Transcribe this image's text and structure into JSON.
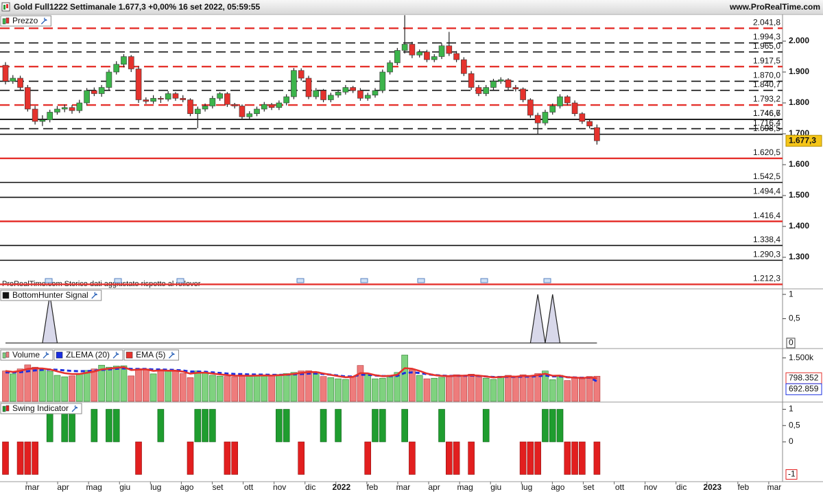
{
  "chart_data": [
    {
      "type": "candlestick",
      "title": "Gold Full1222 Settimanale 1.677,3 +0,00% 16 set 2022, 05:59:55",
      "site": "www.ProRealTime.com",
      "label": "Prezzo",
      "watermark": "ProRealTime.com Storico dati aggiustato rispetto al rollover",
      "up_color": "#3cb44b",
      "down_color": "#e5322d",
      "ohlc": [
        [
          1922,
          1932,
          1860,
          1870
        ],
        [
          1870,
          1890,
          1862,
          1880
        ],
        [
          1880,
          1888,
          1842,
          1850
        ],
        [
          1850,
          1858,
          1772,
          1780
        ],
        [
          1780,
          1790,
          1730,
          1740
        ],
        [
          1740,
          1760,
          1725,
          1745
        ],
        [
          1745,
          1778,
          1737,
          1770
        ],
        [
          1770,
          1790,
          1762,
          1780
        ],
        [
          1780,
          1795,
          1770,
          1785
        ],
        [
          1785,
          1793,
          1765,
          1775
        ],
        [
          1775,
          1810,
          1767,
          1800
        ],
        [
          1800,
          1848,
          1792,
          1840
        ],
        [
          1840,
          1850,
          1822,
          1830
        ],
        [
          1830,
          1858,
          1820,
          1850
        ],
        [
          1850,
          1908,
          1842,
          1900
        ],
        [
          1900,
          1935,
          1892,
          1925
        ],
        [
          1925,
          1958,
          1915,
          1950
        ],
        [
          1950,
          1955,
          1900,
          1910
        ],
        [
          1910,
          1918,
          1800,
          1810
        ],
        [
          1810,
          1818,
          1797,
          1805
        ],
        [
          1805,
          1825,
          1797,
          1815
        ],
        [
          1815,
          1822,
          1800,
          1812
        ],
        [
          1812,
          1838,
          1805,
          1830
        ],
        [
          1830,
          1835,
          1807,
          1815
        ],
        [
          1815,
          1825,
          1802,
          1810
        ],
        [
          1810,
          1815,
          1757,
          1765
        ],
        [
          1765,
          1788,
          1718,
          1780
        ],
        [
          1780,
          1798,
          1772,
          1790
        ],
        [
          1790,
          1823,
          1782,
          1815
        ],
        [
          1815,
          1835,
          1807,
          1830
        ],
        [
          1830,
          1835,
          1787,
          1795
        ],
        [
          1795,
          1800,
          1782,
          1790
        ],
        [
          1790,
          1795,
          1747,
          1755
        ],
        [
          1755,
          1773,
          1748,
          1765
        ],
        [
          1765,
          1788,
          1757,
          1780
        ],
        [
          1780,
          1803,
          1772,
          1795
        ],
        [
          1795,
          1800,
          1777,
          1785
        ],
        [
          1785,
          1808,
          1777,
          1800
        ],
        [
          1800,
          1828,
          1792,
          1820
        ],
        [
          1820,
          1913,
          1812,
          1905
        ],
        [
          1905,
          1912,
          1872,
          1880
        ],
        [
          1880,
          1888,
          1812,
          1820
        ],
        [
          1820,
          1848,
          1812,
          1840
        ],
        [
          1840,
          1845,
          1802,
          1810
        ],
        [
          1810,
          1833,
          1802,
          1825
        ],
        [
          1825,
          1843,
          1817,
          1835
        ],
        [
          1835,
          1858,
          1827,
          1850
        ],
        [
          1850,
          1855,
          1832,
          1840
        ],
        [
          1840,
          1848,
          1807,
          1815
        ],
        [
          1815,
          1833,
          1807,
          1825
        ],
        [
          1825,
          1848,
          1817,
          1840
        ],
        [
          1840,
          1908,
          1832,
          1900
        ],
        [
          1900,
          1938,
          1892,
          1930
        ],
        [
          1930,
          1978,
          1922,
          1970
        ],
        [
          1970,
          2084,
          1960,
          1990
        ],
        [
          1990,
          1998,
          1945,
          1955
        ],
        [
          1955,
          1973,
          1947,
          1965
        ],
        [
          1965,
          1972,
          1932,
          1940
        ],
        [
          1940,
          1958,
          1932,
          1950
        ],
        [
          1950,
          1993,
          1942,
          1985
        ],
        [
          1985,
          2030,
          1952,
          1960
        ],
        [
          1960,
          1968,
          1932,
          1940
        ],
        [
          1940,
          1948,
          1887,
          1895
        ],
        [
          1895,
          1903,
          1842,
          1850
        ],
        [
          1850,
          1858,
          1822,
          1830
        ],
        [
          1830,
          1858,
          1822,
          1850
        ],
        [
          1850,
          1878,
          1842,
          1870
        ],
        [
          1870,
          1883,
          1862,
          1875
        ],
        [
          1875,
          1880,
          1842,
          1850
        ],
        [
          1850,
          1858,
          1837,
          1845
        ],
        [
          1845,
          1850,
          1802,
          1810
        ],
        [
          1810,
          1815,
          1752,
          1760
        ],
        [
          1760,
          1768,
          1700,
          1735
        ],
        [
          1735,
          1778,
          1727,
          1770
        ],
        [
          1770,
          1798,
          1762,
          1790
        ],
        [
          1790,
          1828,
          1782,
          1820
        ],
        [
          1820,
          1825,
          1792,
          1800
        ],
        [
          1800,
          1808,
          1757,
          1765
        ],
        [
          1765,
          1770,
          1732,
          1740
        ],
        [
          1740,
          1748,
          1717,
          1725
        ],
        [
          1720,
          1730,
          1665,
          1677.3
        ]
      ],
      "last_label": "1.677,3",
      "ylim": [
        1200,
        2084.4
      ],
      "yticks": [
        {
          "value": 2000,
          "label": "2.000"
        },
        {
          "value": 1900,
          "label": "1.900"
        },
        {
          "value": 1800,
          "label": "1.800"
        },
        {
          "value": 1700,
          "label": "1.700"
        },
        {
          "value": 1600,
          "label": "1.600"
        },
        {
          "value": 1500,
          "label": "1.500"
        },
        {
          "value": 1400,
          "label": "1.400"
        },
        {
          "value": 1300,
          "label": "1.300"
        }
      ],
      "levels": [
        {
          "value": 2041.8,
          "label": "2.041,8",
          "color": "#e5322d",
          "dashed": true
        },
        {
          "value": 1994.3,
          "label": "1.994,3",
          "color": "#111111",
          "dashed": true
        },
        {
          "value": 1965.0,
          "label": "1.965,0",
          "color": "#111111",
          "dashed": true
        },
        {
          "value": 1917.5,
          "label": "1.917,5",
          "color": "#e5322d",
          "dashed": true
        },
        {
          "value": 1870.0,
          "label": "1.870,0",
          "color": "#111111",
          "dashed": true
        },
        {
          "value": 1840.7,
          "label": "1.840,7",
          "color": "#111111",
          "dashed": true
        },
        {
          "value": 1793.2,
          "label": "1.793,2",
          "color": "#e5322d",
          "dashed": true
        },
        {
          "value": 1746.6,
          "label": "1.746,6",
          "color": "#111111",
          "dashed": false
        },
        {
          "value": 1746.7,
          "label": "1.746,7",
          "color": "#111111",
          "dashed": false
        },
        {
          "value": 1716.4,
          "label": "1.716,4",
          "color": "#111111",
          "dashed": true
        },
        {
          "value": 1698.5,
          "label": "1.698,5",
          "color": "#111111",
          "dashed": false
        },
        {
          "value": 1620.5,
          "label": "1.620,5",
          "color": "#e5322d",
          "dashed": false
        },
        {
          "value": 1542.5,
          "label": "1.542,5",
          "color": "#111111",
          "dashed": false
        },
        {
          "value": 1494.4,
          "label": "1.494,4",
          "color": "#111111",
          "dashed": false
        },
        {
          "value": 1416.4,
          "label": "1.416,4",
          "color": "#e5322d",
          "dashed": false
        },
        {
          "value": 1338.4,
          "label": "1.338,4",
          "color": "#111111",
          "dashed": false
        },
        {
          "value": 1290.3,
          "label": "1.290,3",
          "color": "#111111",
          "dashed": false
        },
        {
          "value": 1212.3,
          "label": "1.212,3",
          "color": "#e5322d",
          "dashed": false
        }
      ]
    },
    {
      "type": "area",
      "label": "BottomHunter Signal",
      "color": "#d8d8ea",
      "values": [
        0,
        0,
        0,
        0,
        0,
        0,
        1,
        0,
        0,
        0,
        0,
        0,
        0,
        0,
        0,
        0,
        0,
        0,
        0,
        0,
        0,
        0,
        0,
        0,
        0,
        0,
        0,
        0,
        0,
        0,
        0,
        0,
        0,
        0,
        0,
        0,
        0,
        0,
        0,
        0,
        0,
        0,
        0,
        0,
        0,
        0,
        0,
        0,
        0,
        0,
        0,
        0,
        0,
        0,
        0,
        0,
        0,
        0,
        0,
        0,
        0,
        0,
        0,
        0,
        0,
        0,
        0,
        0,
        0,
        0,
        0,
        0,
        1,
        0,
        1,
        0,
        0,
        0,
        0,
        0,
        0
      ],
      "ylim": [
        -0.1,
        1.1
      ],
      "yticks": [
        1,
        {
          "value": 0.5,
          "label": "0,5"
        }
      ]
    },
    {
      "type": "bar",
      "ylim": [
        0,
        1800
      ],
      "yticks": [
        {
          "value": 1500,
          "label": "1.500k"
        }
      ],
      "series": [
        {
          "name": "Volume",
          "up_color": "#7fd27f",
          "down_color": "#ee7c7c",
          "values": [
            1050,
            950,
            1120,
            1260,
            1180,
            1130,
            1040,
            900,
            850,
            880,
            950,
            1070,
            1120,
            1250,
            1180,
            1220,
            1230,
            880,
            1130,
            1120,
            950,
            1100,
            1040,
            1060,
            960,
            820,
            1050,
            1000,
            900,
            870,
            860,
            840,
            900,
            870,
            900,
            910,
            880,
            930,
            960,
            1000,
            1050,
            1060,
            1020,
            860,
            820,
            780,
            760,
            870,
            1240,
            950,
            780,
            800,
            900,
            1000,
            1600,
            1090,
            900,
            780,
            800,
            830,
            850,
            920,
            890,
            940,
            860,
            800,
            760,
            870,
            900,
            840,
            920,
            880,
            960,
            1050,
            750,
            900,
            720,
            800,
            780,
            860,
            870
          ]
        },
        {
          "name": "ZLEMA (20)",
          "color": "#1a2ee0",
          "values": [
            1000,
            1000,
            1010,
            1040,
            1070,
            1090,
            1100,
            1090,
            1070,
            1050,
            1040,
            1045,
            1060,
            1085,
            1105,
            1125,
            1140,
            1120,
            1120,
            1120,
            1100,
            1100,
            1090,
            1085,
            1065,
            1030,
            1030,
            1020,
            1000,
            980,
            960,
            945,
            940,
            930,
            925,
            922,
            915,
            915,
            920,
            930,
            945,
            960,
            965,
            945,
            920,
            890,
            860,
            860,
            920,
            920,
            895,
            875,
            870,
            880,
            980,
            1000,
            980,
            940,
            910,
            890,
            880,
            885,
            882,
            890,
            880,
            860,
            840,
            842,
            850,
            845,
            855,
            855,
            870,
            895,
            865,
            865,
            835,
            825,
            815,
            820,
            692.859
          ]
        },
        {
          "name": "EMA (5)",
          "color": "#e5322d",
          "values": [
            1050,
            1017,
            1051,
            1121,
            1141,
            1137,
            1105,
            1036,
            974,
            943,
            945,
            987,
            1031,
            1104,
            1129,
            1159,
            1183,
            1082,
            1098,
            1105,
            1053,
            1069,
            1059,
            1059,
            1026,
            957,
            988,
            992,
            961,
            931,
            907,
            885,
            890,
            883,
            889,
            896,
            891,
            904,
            923,
            949,
            983,
            1009,
            1013,
            962,
            915,
            870,
            833,
            845,
            977,
            968,
            905,
            870,
            880,
            920,
            1147,
            1128,
            1052,
            961,
            907,
            881,
            871,
            887,
            888,
            905,
            890,
            860,
            827,
            841,
            861,
            854,
            876,
            877,
            905,
            953,
            885,
            890,
            833,
            822,
            808,
            825,
            798.352
          ]
        }
      ]
    },
    {
      "type": "bar",
      "label": "Swing Indicator",
      "up_color": "#1f9d2f",
      "down_color": "#e21f1f",
      "values": [
        -1,
        0,
        -1,
        -1,
        -1,
        0,
        1,
        0,
        1,
        1,
        0,
        0,
        1,
        0,
        1,
        1,
        0,
        0,
        -1,
        0,
        0,
        1,
        0,
        0,
        0,
        -1,
        1,
        1,
        1,
        0,
        -1,
        -1,
        0,
        0,
        0,
        0,
        0,
        1,
        1,
        0,
        -1,
        0,
        0,
        1,
        0,
        1,
        0,
        0,
        0,
        -1,
        1,
        1,
        0,
        0,
        1,
        -1,
        0,
        0,
        0,
        1,
        -1,
        -1,
        0,
        -1,
        0,
        1,
        0,
        0,
        0,
        0,
        -1,
        -1,
        -1,
        1,
        1,
        1,
        -1,
        -1,
        -1,
        0,
        -1
      ],
      "ylim": [
        -1.2,
        1.2
      ],
      "yticks": [
        1,
        {
          "value": 0.5,
          "label": "0,5"
        },
        0
      ],
      "months": [
        "mar",
        "apr",
        "mag",
        "giu",
        "lug",
        "ago",
        "set",
        "ott",
        "nov",
        "dic",
        "2022",
        "feb",
        "mar",
        "apr",
        "mag",
        "giu",
        "lug",
        "ago",
        "set",
        "ott",
        "nov",
        "dic",
        "2023",
        "feb",
        "mar"
      ]
    }
  ]
}
